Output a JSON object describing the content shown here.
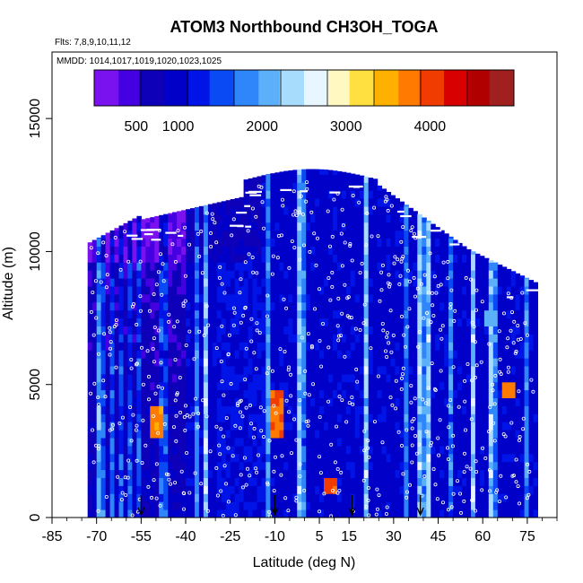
{
  "chart_data": {
    "type": "heatmap",
    "title": "ATOM3 Northbound CH3OH_TOGA",
    "flights_label": "Flts: 7,8,9,10,11,12",
    "dates_label": "MMDD: 1014,1017,1019,1020,1023,1025",
    "xlabel": "Latitude (deg N)",
    "ylabel": "Altitude (m)",
    "xlim": [
      -85,
      85
    ],
    "ylim": [
      0,
      17500
    ],
    "xticks": [
      -85,
      -70,
      -55,
      -40,
      -25,
      -10,
      5,
      15,
      30,
      45,
      60,
      75
    ],
    "yticks": [
      0,
      5000,
      10000,
      15000
    ],
    "colorbar": {
      "range": [
        0,
        5000
      ],
      "tick_values": [
        500,
        1000,
        2000,
        3000,
        4000
      ],
      "tick_labels": [
        "500",
        "1000",
        "2000",
        "3000",
        "4000"
      ],
      "colors": [
        "#7a12f0",
        "#4400e0",
        "#0d00b8",
        "#0000c8",
        "#0014e8",
        "#0a4af4",
        "#2f86fa",
        "#5cb0fa",
        "#a8dcfc",
        "#e8f6ff",
        "#fff8c0",
        "#ffe040",
        "#ffb000",
        "#ff7a00",
        "#f03c00",
        "#d80000",
        "#b00000",
        "#a02020"
      ]
    },
    "grid": false,
    "legend": "none",
    "hotspots": [
      {
        "lat": -50,
        "alt_min": 2800,
        "alt_max": 4000,
        "value": 3800
      },
      {
        "lat": -10,
        "alt_min": 3000,
        "alt_max": 4500,
        "value": 4000
      },
      {
        "lat": 8,
        "alt_min": 800,
        "alt_max": 1300,
        "value": 4100
      },
      {
        "lat": 68,
        "alt_min": 4500,
        "alt_max": 5000,
        "value": 3900
      },
      {
        "lat": 62,
        "alt_min": 7200,
        "alt_max": 7700,
        "value": 2300
      }
    ],
    "arrows_latitudes": [
      -55,
      -10,
      16,
      39
    ]
  },
  "palette": {
    "outline": "#000000",
    "background": "#ffffff",
    "marker": "#ffffff"
  }
}
